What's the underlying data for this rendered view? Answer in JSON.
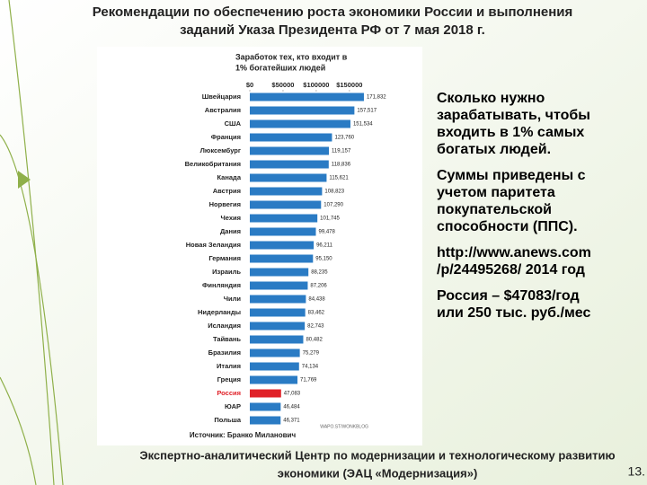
{
  "slide": {
    "title": [
      "Рекомендации по обеспечению роста экономики России и выполнения",
      "заданий Указа Президента РФ от 7 мая 2018 г."
    ],
    "paragraphs": [
      [
        "Сколько нужно",
        "зарабатывать, чтобы",
        "входить в 1% самых",
        "богатых людей."
      ],
      [
        "Суммы приведены с",
        "учетом паритета",
        "покупательской",
        "способности (ППС)."
      ],
      [
        "http://www.anews.com",
        "/p/24495268/  2014 год"
      ],
      [
        "Россия – $47083/год",
        "или 250 тыс. руб./мес"
      ]
    ],
    "footer": [
      "Экспертно-аналитический Центр по модернизации и технологическому развитию",
      "экономики (ЭАЦ «Модернизация»)"
    ],
    "page_number": "13."
  },
  "chart_data": {
    "type": "hbar",
    "title": [
      "Заработок тех, кто входит в",
      "1% богатейших людей"
    ],
    "source": "Источник: Бранко Миланович",
    "credit": "WAPO.ST/WONKBLOG",
    "categories": [
      "Швейцария",
      "Австралия",
      "США",
      "Франция",
      "Люксембург",
      "Великобритания",
      "Канада",
      "Австрия",
      "Норвегия",
      "Чехия",
      "Дания",
      "Новая Зеландия",
      "Германия",
      "Израиль",
      "Финляндия",
      "Чили",
      "Нидерланды",
      "Исландия",
      "Тайвань",
      "Бразилия",
      "Италия",
      "Греция",
      "Россия",
      "ЮАР",
      "Польша"
    ],
    "values": [
      171832,
      157517,
      151534,
      123760,
      119157,
      118836,
      115621,
      108823,
      107290,
      101745,
      99478,
      96211,
      95150,
      88235,
      87206,
      84438,
      83462,
      82743,
      80482,
      75279,
      74134,
      71769,
      47083,
      46484,
      46371
    ],
    "value_labels": [
      "171,832",
      "157,517",
      "151,534",
      "123,760",
      "119,157",
      "118,836",
      "115,621",
      "108,823",
      "107,290",
      "101,745",
      "99,478",
      "96,211",
      "95,150",
      "88,235",
      "87,206",
      "84,438",
      "83,462",
      "82,743",
      "80,482",
      "75,279",
      "74,134",
      "71,769",
      "47,083",
      "46,484",
      "46,371"
    ],
    "colors": [
      "#2a7bc4",
      "#2a7bc4",
      "#2a7bc4",
      "#2a7bc4",
      "#2a7bc4",
      "#2a7bc4",
      "#2a7bc4",
      "#2a7bc4",
      "#2a7bc4",
      "#2a7bc4",
      "#2a7bc4",
      "#2a7bc4",
      "#2a7bc4",
      "#2a7bc4",
      "#2a7bc4",
      "#2a7bc4",
      "#2a7bc4",
      "#2a7bc4",
      "#2a7bc4",
      "#2a7bc4",
      "#2a7bc4",
      "#2a7bc4",
      "#e02128",
      "#2a7bc4",
      "#2a7bc4"
    ],
    "xlim": [
      0,
      180000
    ],
    "xticks": [
      {
        "value": 0,
        "label": "$0"
      },
      {
        "value": 50000,
        "label": "$50000"
      },
      {
        "value": 100000,
        "label": "$100000"
      },
      {
        "value": 150000,
        "label": "$150000"
      }
    ]
  }
}
